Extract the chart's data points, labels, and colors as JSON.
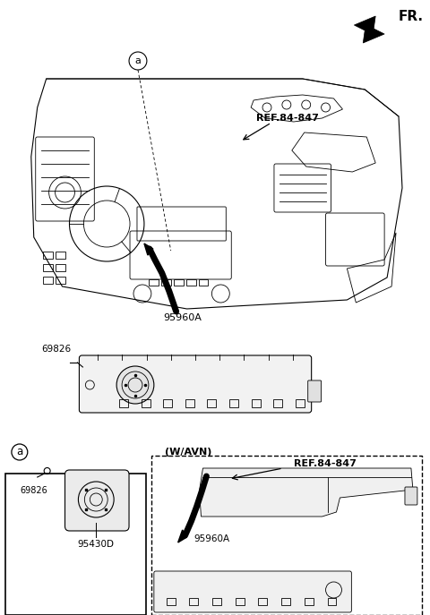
{
  "bg_color": "#ffffff",
  "fr_label": "FR.",
  "ref_label_1": "REF.84-847",
  "ref_label_2": "REF.84-847",
  "label_a": "a",
  "label_95960A_1": "95960A",
  "label_95960A_2": "95960A",
  "label_69826_1": "69826",
  "label_69826_2": "69826",
  "label_95430D": "95430D",
  "label_wavn": "(W/AVN)"
}
